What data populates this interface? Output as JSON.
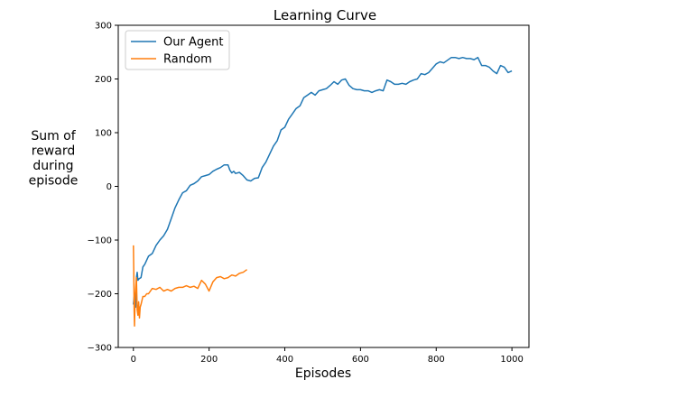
{
  "chart_data": {
    "type": "line",
    "title": "Learning Curve",
    "xlabel": "Episodes",
    "ylabel_lines": [
      "Sum of",
      "reward",
      "during",
      "episode"
    ],
    "xlim": [
      -40,
      1045
    ],
    "ylim": [
      -300,
      300
    ],
    "xticks": [
      0,
      200,
      400,
      600,
      800,
      1000
    ],
    "yticks": [
      -300,
      -200,
      -100,
      0,
      100,
      200,
      300
    ],
    "xtick_labels": [
      "0",
      "200",
      "400",
      "600",
      "800",
      "1000"
    ],
    "ytick_labels": [
      "−300",
      "−200",
      "−100",
      "0",
      "100",
      "200",
      "300"
    ],
    "grid": false,
    "legend_position": "top-left",
    "series": [
      {
        "name": "Our Agent",
        "color": "#1f77b4",
        "x": [
          0,
          3,
          6,
          8,
          10,
          12,
          15,
          20,
          25,
          30,
          40,
          50,
          60,
          70,
          80,
          90,
          100,
          110,
          120,
          130,
          140,
          150,
          160,
          170,
          180,
          190,
          200,
          210,
          220,
          230,
          240,
          250,
          255,
          260,
          265,
          270,
          280,
          290,
          300,
          310,
          320,
          330,
          340,
          350,
          360,
          370,
          380,
          390,
          400,
          410,
          420,
          430,
          440,
          450,
          460,
          470,
          480,
          490,
          500,
          510,
          520,
          530,
          540,
          550,
          560,
          570,
          580,
          590,
          600,
          610,
          620,
          630,
          640,
          650,
          660,
          670,
          680,
          690,
          700,
          710,
          720,
          730,
          740,
          750,
          760,
          770,
          780,
          790,
          800,
          810,
          820,
          830,
          840,
          850,
          860,
          870,
          880,
          890,
          900,
          910,
          920,
          930,
          940,
          950,
          960,
          970,
          980,
          990,
          1000
        ],
        "y": [
          -220,
          -200,
          -225,
          -170,
          -160,
          -175,
          -172,
          -170,
          -150,
          -145,
          -130,
          -125,
          -110,
          -100,
          -92,
          -80,
          -60,
          -40,
          -25,
          -12,
          -8,
          2,
          5,
          10,
          18,
          20,
          22,
          28,
          32,
          35,
          40,
          40,
          30,
          25,
          28,
          24,
          26,
          20,
          12,
          10,
          15,
          16,
          35,
          45,
          60,
          75,
          85,
          105,
          110,
          125,
          135,
          145,
          150,
          165,
          170,
          175,
          170,
          178,
          180,
          182,
          188,
          195,
          190,
          198,
          200,
          188,
          182,
          180,
          180,
          178,
          178,
          175,
          178,
          180,
          178,
          198,
          195,
          190,
          190,
          192,
          190,
          195,
          198,
          200,
          210,
          208,
          212,
          220,
          228,
          232,
          230,
          235,
          240,
          240,
          238,
          240,
          238,
          238,
          236,
          240,
          225,
          225,
          222,
          215,
          210,
          225,
          222,
          212,
          215
        ]
      },
      {
        "name": "Random",
        "color": "#ff7f0e",
        "x": [
          0,
          1,
          2,
          3,
          4,
          5,
          6,
          8,
          10,
          12,
          14,
          16,
          18,
          20,
          25,
          30,
          35,
          40,
          50,
          60,
          70,
          80,
          90,
          100,
          110,
          120,
          130,
          140,
          150,
          160,
          170,
          180,
          190,
          200,
          210,
          220,
          230,
          240,
          250,
          260,
          270,
          280,
          290,
          300
        ],
        "y": [
          -110,
          -160,
          -230,
          -260,
          -220,
          -200,
          -190,
          -170,
          -230,
          -240,
          -215,
          -245,
          -225,
          -220,
          -205,
          -205,
          -200,
          -200,
          -190,
          -192,
          -188,
          -195,
          -192,
          -195,
          -190,
          -188,
          -188,
          -185,
          -188,
          -186,
          -190,
          -175,
          -182,
          -195,
          -178,
          -170,
          -168,
          -172,
          -170,
          -165,
          -167,
          -162,
          -160,
          -155
        ]
      }
    ]
  }
}
